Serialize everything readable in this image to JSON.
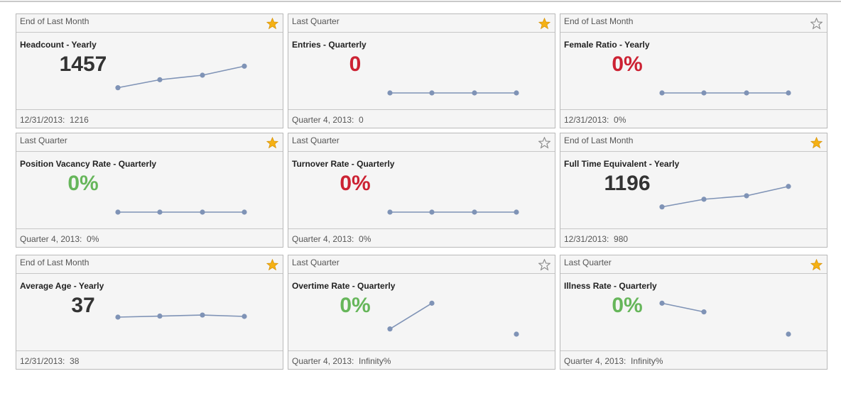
{
  "colors": {
    "neutral": "#333333",
    "bad": "#cc2233",
    "good": "#66b65a",
    "spark": "#7f93b6",
    "star_on": "#f5b114",
    "star_off": "#888888"
  },
  "tiles": [
    {
      "period": "End of Last Month",
      "starred": true,
      "title": "Headcount - Yearly",
      "value": "1457",
      "status": "neutral",
      "footer": "12/31/2013:  1216",
      "spark": [
        0.15,
        0.38,
        0.51,
        0.77
      ]
    },
    {
      "period": "Last Quarter",
      "starred": true,
      "title": "Entries - Quarterly",
      "value": "0",
      "status": "bad",
      "footer": "Quarter 4, 2013:  0",
      "spark": [
        0,
        0,
        0,
        0
      ]
    },
    {
      "period": "End of Last Month",
      "starred": false,
      "title": "Female Ratio - Yearly",
      "value": "0%",
      "status": "bad",
      "footer": "12/31/2013:  0%",
      "spark": [
        0,
        0,
        0,
        0
      ]
    },
    {
      "period": "Last Quarter",
      "starred": true,
      "title": "Position Vacancy Rate - Quarterly",
      "value": "0%",
      "status": "good",
      "footer": "Quarter 4, 2013:  0%",
      "spark": [
        0,
        0,
        0,
        0
      ]
    },
    {
      "period": "Last Quarter",
      "starred": false,
      "title": "Turnover Rate - Quarterly",
      "value": "0%",
      "status": "bad",
      "footer": "Quarter 4, 2013:  0%",
      "spark": [
        0,
        0,
        0,
        0
      ]
    },
    {
      "period": "End of Last Month",
      "starred": true,
      "title": "Full Time Equivalent - Yearly",
      "value": "1196",
      "status": "neutral",
      "footer": "12/31/2013:  980",
      "spark": [
        0.15,
        0.37,
        0.47,
        0.74
      ]
    },
    {
      "period": "End of Last Month",
      "starred": true,
      "title": "Average Age - Yearly",
      "value": "37",
      "status": "neutral",
      "footer": "12/31/2013:  38",
      "spark": [
        0.49,
        0.52,
        0.55,
        0.51
      ]
    },
    {
      "period": "Last Quarter",
      "starred": false,
      "title": "Overtime Rate - Quarterly",
      "value": "0%",
      "status": "good",
      "footer": "Quarter 4, 2013:  Infinity%",
      "spark": [
        0.15,
        0.89,
        null,
        0
      ]
    },
    {
      "period": "Last Quarter",
      "starred": true,
      "title": "Illness Rate - Quarterly",
      "value": "0%",
      "status": "good",
      "footer": "Quarter 4, 2013:  Infinity%",
      "spark": [
        0.89,
        0.64,
        null,
        0
      ]
    }
  ]
}
